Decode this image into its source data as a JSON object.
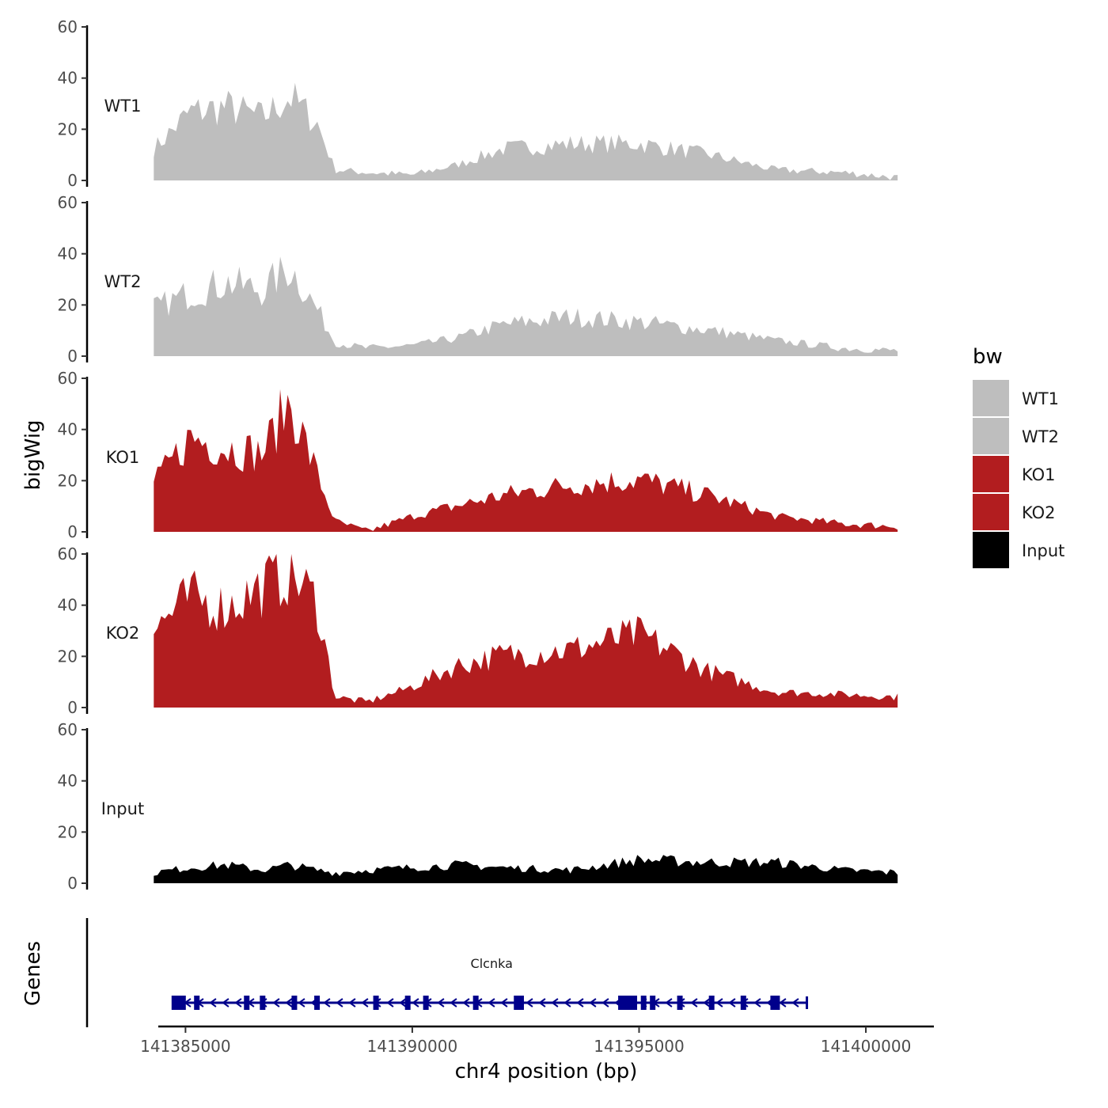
{
  "chart_data": {
    "type": "area",
    "y_axis_title": "bigWig",
    "x_axis_title": "chr4 position (bp)",
    "x_range": [
      141384400,
      141401500
    ],
    "x_ticks": [
      141385000,
      141390000,
      141395000,
      141400000
    ],
    "x_tick_labels": [
      "141385000",
      "141390000",
      "141395000",
      "141400000"
    ],
    "y_range": [
      0,
      60
    ],
    "y_ticks": [
      0,
      20,
      40,
      60
    ],
    "y_tick_labels": [
      "0",
      "20",
      "40",
      "60"
    ],
    "legend": {
      "title": "bw",
      "entries": [
        {
          "label": "WT1",
          "color": "#bebebe"
        },
        {
          "label": "WT2",
          "color": "#bebebe"
        },
        {
          "label": "KO1",
          "color": "#b21d1f"
        },
        {
          "label": "KO2",
          "color": "#b21d1f"
        },
        {
          "label": "Input",
          "color": "#000000"
        }
      ]
    },
    "series": [
      {
        "name": "WT1",
        "color": "#bebebe",
        "x": [
          141384300,
          141385100,
          141385900,
          141386700,
          141387300,
          141387900,
          141388300,
          141389000,
          141390000,
          141391000,
          141392000,
          141393500,
          141395000,
          141396500,
          141398000,
          141399500,
          141400700
        ],
        "values": [
          12,
          26,
          28,
          24,
          32,
          22,
          4,
          3,
          2,
          6,
          12,
          14,
          14,
          10,
          4,
          3,
          1
        ]
      },
      {
        "name": "WT2",
        "color": "#bebebe",
        "x": [
          141384300,
          141385100,
          141385900,
          141386700,
          141387300,
          141387900,
          141388300,
          141389000,
          141390000,
          141391000,
          141392000,
          141393500,
          141395000,
          141396500,
          141398000,
          141399500,
          141400700
        ],
        "values": [
          18,
          24,
          28,
          25,
          34,
          18,
          5,
          3,
          4,
          7,
          12,
          15,
          13,
          10,
          6,
          3,
          2
        ]
      },
      {
        "name": "KO1",
        "color": "#b21d1f",
        "x": [
          141384300,
          141385100,
          141385900,
          141386700,
          141387300,
          141387900,
          141388300,
          141389000,
          141390000,
          141391000,
          141392000,
          141393500,
          141395000,
          141396500,
          141398000,
          141399500,
          141400700
        ],
        "values": [
          18,
          36,
          32,
          30,
          50,
          22,
          4,
          0,
          6,
          10,
          14,
          18,
          20,
          14,
          6,
          3,
          2
        ]
      },
      {
        "name": "KO2",
        "color": "#b21d1f",
        "x": [
          141384300,
          141385100,
          141385900,
          141386700,
          141387300,
          141387900,
          141388300,
          141389000,
          141390000,
          141391000,
          141392000,
          141393500,
          141395000,
          141396500,
          141398000,
          141399500,
          141400700
        ],
        "values": [
          30,
          42,
          38,
          46,
          52,
          40,
          4,
          2,
          8,
          16,
          20,
          22,
          28,
          14,
          6,
          5,
          4
        ]
      },
      {
        "name": "Input",
        "color": "#000000",
        "x": [
          141384300,
          141385100,
          141385900,
          141386700,
          141387300,
          141387900,
          141388300,
          141389000,
          141390000,
          141391000,
          141392000,
          141393500,
          141395000,
          141396500,
          141398000,
          141399500,
          141400700
        ],
        "values": [
          4,
          6,
          7,
          5,
          7,
          5,
          4,
          5,
          6,
          7,
          6,
          5,
          9,
          8,
          8,
          5,
          4
        ]
      }
    ],
    "genes_track": {
      "title": "Genes",
      "genes": [
        {
          "name": "Clcnka",
          "start": 141384800,
          "end": 141398700,
          "strand": "-",
          "color": "#00008b",
          "exons": [
            141384850,
            141385250,
            141386350,
            141386700,
            141387400,
            141387900,
            141389200,
            141389900,
            141390300,
            141391400,
            141392300,
            141392400,
            141394600,
            141394800,
            141395100,
            141395300,
            141395900,
            141396600,
            141397300,
            141398000
          ]
        }
      ]
    }
  }
}
